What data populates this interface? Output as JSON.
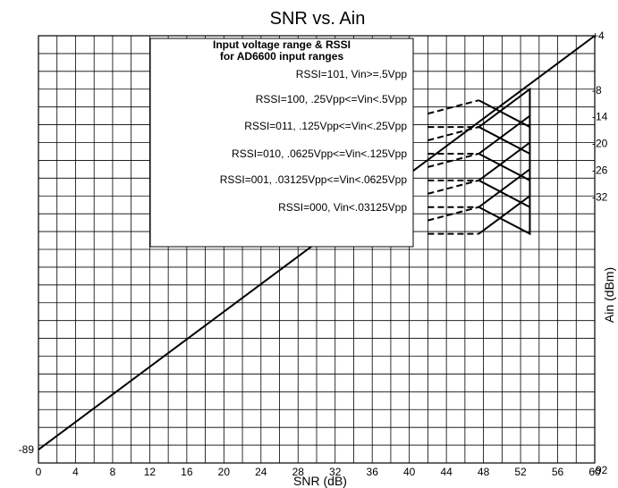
{
  "chart_data": {
    "type": "line",
    "title": "SNR vs. Ain",
    "xlabel": "SNR (dB)",
    "ylabel": "Ain (dBm)",
    "xlim": [
      0,
      60
    ],
    "ylim": [
      -92,
      4
    ],
    "grid": true,
    "x_ticks": [
      "0",
      "4",
      "8",
      "12",
      "16",
      "20",
      "24",
      "28",
      "32",
      "36",
      "40",
      "44",
      "48",
      "52",
      "56",
      "60"
    ],
    "y_tick_labels": [
      {
        "value": 4,
        "label": "+4",
        "side": "right"
      },
      {
        "value": -8,
        "label": "-8",
        "side": "right"
      },
      {
        "value": -14,
        "label": "-14",
        "side": "right"
      },
      {
        "value": -20,
        "label": "-20",
        "side": "right"
      },
      {
        "value": -26,
        "label": "-26",
        "side": "right"
      },
      {
        "value": -32,
        "label": "-32",
        "side": "right"
      },
      {
        "value": -89,
        "label": "-89",
        "side": "left"
      },
      {
        "value": -92,
        "label": "-92",
        "side": "right"
      }
    ],
    "series": [
      {
        "style": "solid",
        "x": [
          0,
          60
        ],
        "y": [
          -89,
          4
        ]
      },
      {
        "style": "solid",
        "x": [
          47.5,
          53,
          53,
          47.5,
          53,
          53,
          47.5,
          53,
          53,
          47.5,
          53,
          53,
          47.5,
          53,
          53,
          47.5
        ],
        "y": [
          -40.5,
          -32,
          -40.5,
          -34.5,
          -26,
          -34.5,
          -28.5,
          -20,
          -28.5,
          -22.5,
          -14,
          -22.5,
          -16.5,
          -8,
          -16.5,
          -10.5
        ]
      }
    ],
    "dashed_segments": [
      {
        "x": [
          42,
          47.5
        ],
        "y": [
          -40.5,
          -40.5
        ]
      },
      {
        "x": [
          42,
          47.5
        ],
        "y": [
          -37.5,
          -34.5
        ]
      },
      {
        "x": [
          42,
          47.5
        ],
        "y": [
          -34.5,
          -34.5
        ]
      },
      {
        "x": [
          42,
          47.5
        ],
        "y": [
          -31.5,
          -28.5
        ]
      },
      {
        "x": [
          42,
          47.5
        ],
        "y": [
          -28.5,
          -28.5
        ]
      },
      {
        "x": [
          42,
          47.5
        ],
        "y": [
          -25.5,
          -22.5
        ]
      },
      {
        "x": [
          42,
          47.5
        ],
        "y": [
          -22.5,
          -22.5
        ]
      },
      {
        "x": [
          42,
          47.5
        ],
        "y": [
          -19.5,
          -16.5
        ]
      },
      {
        "x": [
          42,
          47.5
        ],
        "y": [
          -16.5,
          -16.5
        ]
      },
      {
        "x": [
          42,
          47.5
        ],
        "y": [
          -13.5,
          -10.5
        ]
      }
    ],
    "legend": {
      "placement": "top-center",
      "heading": [
        "Input voltage range & RSSI",
        "for AD6600 input ranges"
      ],
      "entries": [
        "RSSI=101, Vin>=.5Vpp",
        "RSSI=100, .25Vpp<=Vin<.5Vpp",
        "RSSI=011, .125Vpp<=Vin<.25Vpp",
        "RSSI=010, .0625Vpp<=Vin<.125Vpp",
        "RSSI=001, .03125Vpp<=Vin<.0625Vpp",
        "RSSI=000, Vin<.03125Vpp"
      ]
    }
  }
}
